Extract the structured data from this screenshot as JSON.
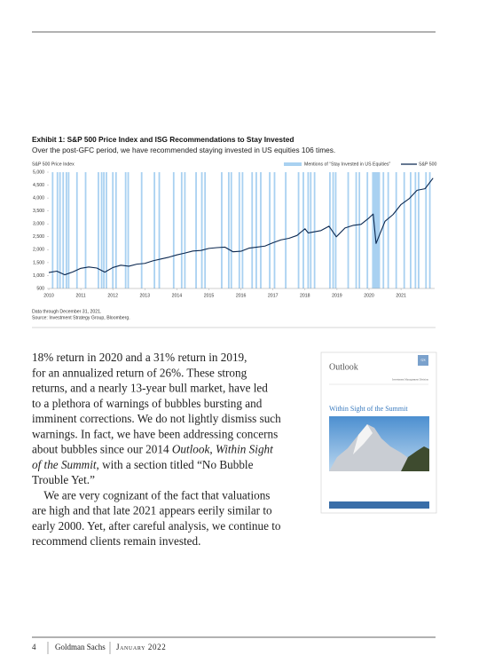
{
  "chart_data": {
    "type": "line",
    "title": "Exhibit 1: S&P 500 Price Index and ISG Recommendations to Stay Invested",
    "subtitle": "Over the post-GFC period, we have recommended staying invested in US equities 106 times.",
    "y_label": "S&P 500 Price Index",
    "xlim": [
      2010,
      2022.05
    ],
    "xticks": [
      2010,
      2011,
      2012,
      2013,
      2014,
      2015,
      2016,
      2017,
      2018,
      2019,
      2020,
      2021
    ],
    "ylim": [
      500,
      5000
    ],
    "yticks": [
      500,
      {
        "value": 1000,
        "label": "1,000"
      },
      {
        "value": 1500,
        "label": "1,500"
      },
      {
        "value": 2000,
        "label": "2,000"
      },
      {
        "value": 2500,
        "label": "2,500"
      },
      {
        "value": 3000,
        "label": "3,000"
      },
      {
        "value": 3500,
        "label": "3,500"
      },
      {
        "value": 4000,
        "label": "4,000"
      },
      {
        "value": 4500,
        "label": "4,500"
      },
      {
        "value": 5000,
        "label": "5,000"
      }
    ],
    "bars": {
      "name": "Mentions of “Stay Invested in US Equities”",
      "color": "#a9d1f1",
      "x": [
        2010.12,
        2010.27,
        2010.35,
        2010.45,
        2010.55,
        2010.62,
        2010.88,
        2011.15,
        2011.55,
        2011.65,
        2011.72,
        2011.8,
        2012.0,
        2012.1,
        2012.4,
        2012.48,
        2012.9,
        2013.3,
        2013.45,
        2013.9,
        2014.15,
        2014.25,
        2014.6,
        2014.78,
        2014.88,
        2015.4,
        2015.62,
        2015.7,
        2015.95,
        2016.05,
        2016.35,
        2016.48,
        2016.62,
        2016.9,
        2017.05,
        2017.4,
        2017.8,
        2017.95,
        2018.1,
        2018.18,
        2018.3,
        2018.78,
        2018.88,
        2018.96,
        2019.35,
        2019.6,
        2019.7,
        2019.95,
        2020.12,
        2020.16,
        2020.2,
        2020.24,
        2020.28,
        2020.32,
        2020.45,
        2020.6,
        2020.85,
        2021.1,
        2021.3,
        2021.45,
        2021.55,
        2021.78,
        2021.9
      ]
    },
    "series": [
      {
        "name": "S&P 500",
        "color": "#0b2850",
        "x": [
          2010.0,
          2010.25,
          2010.5,
          2010.75,
          2011.0,
          2011.25,
          2011.5,
          2011.75,
          2012.0,
          2012.25,
          2012.5,
          2012.75,
          2013.0,
          2013.25,
          2013.5,
          2013.75,
          2014.0,
          2014.25,
          2014.5,
          2014.75,
          2015.0,
          2015.25,
          2015.5,
          2015.75,
          2016.0,
          2016.25,
          2016.5,
          2016.75,
          2017.0,
          2017.25,
          2017.5,
          2017.75,
          2018.0,
          2018.1,
          2018.5,
          2018.75,
          2018.98,
          2019.25,
          2019.5,
          2019.75,
          2020.0,
          2020.13,
          2020.22,
          2020.5,
          2020.75,
          2021.0,
          2021.25,
          2021.5,
          2021.75,
          2022.0
        ],
        "values": [
          1115,
          1170,
          1030,
          1140,
          1280,
          1330,
          1290,
          1130,
          1310,
          1400,
          1360,
          1440,
          1470,
          1570,
          1640,
          1710,
          1800,
          1870,
          1950,
          1970,
          2050,
          2080,
          2100,
          1920,
          1940,
          2060,
          2100,
          2140,
          2270,
          2380,
          2440,
          2550,
          2810,
          2650,
          2740,
          2910,
          2500,
          2840,
          2940,
          2980,
          3230,
          3380,
          2240,
          3100,
          3360,
          3750,
          3970,
          4300,
          4360,
          4770
        ]
      }
    ],
    "notes": [
      "Data through December 31, 2021.",
      "Source: Investment Strategy Group, Bloomberg."
    ]
  },
  "body": {
    "lines": [
      [
        {
          "text": "18% return in 2020 and a 31% return in 2019,",
          "italic": false
        }
      ],
      [
        {
          "text": "for an annualized return of 26%. These strong",
          "italic": false
        }
      ],
      [
        {
          "text": "returns, and a nearly 13-year bull market, have led",
          "italic": false
        }
      ],
      [
        {
          "text": "to a plethora of warnings of bubbles bursting and",
          "italic": false
        }
      ],
      [
        {
          "text": "imminent corrections. We do not lightly dismiss such",
          "italic": false
        }
      ],
      [
        {
          "text": "warnings. In fact, we have been addressing concerns",
          "italic": false
        }
      ],
      [
        {
          "text": "about bubbles since our 2014 ",
          "italic": false
        },
        {
          "text": "Outlook",
          "italic": true
        },
        {
          "text": ", ",
          "italic": false
        },
        {
          "text": "Within Sight",
          "italic": true
        }
      ],
      [
        {
          "text": "of the Summit",
          "italic": true
        },
        {
          "text": ", with a section titled “No Bubble",
          "italic": false
        }
      ],
      [
        {
          "text": "Trouble Yet.”",
          "italic": false
        }
      ],
      [
        {
          "text": " We are very cognizant of the fact that valuations",
          "italic": false
        }
      ],
      [
        {
          "text": "are high and that late 2021 appears eerily similar to",
          "italic": false
        }
      ],
      [
        {
          "text": "early 2000. Yet, after careful analysis, we continue to",
          "italic": false
        }
      ],
      [
        {
          "text": "recommend clients remain invested.",
          "italic": false
        }
      ]
    ]
  },
  "cover": {
    "title": "Outlook",
    "division": "Investment Management Division",
    "headline": "Within Sight of the Summit",
    "logo": "GS"
  },
  "footer": {
    "page": "4",
    "brand": "Goldman Sachs",
    "date": "January 2022"
  }
}
